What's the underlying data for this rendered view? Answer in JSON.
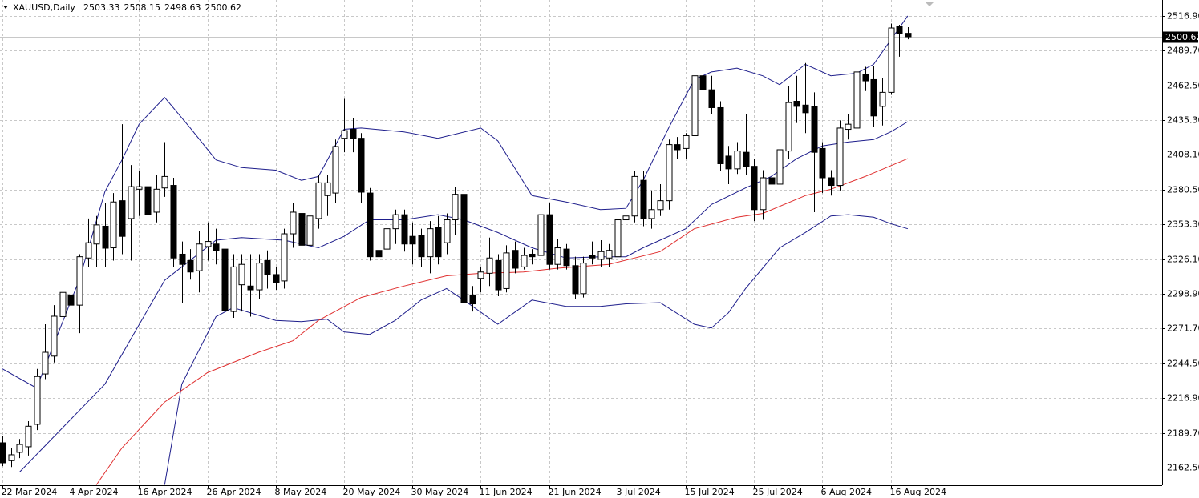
{
  "chart_data": {
    "type": "candlestick",
    "title": "XAUUSD,Daily",
    "header_values": [
      2503.33,
      2508.15,
      2498.63,
      2500.62
    ],
    "categories": [
      "22 Mar 2024",
      null,
      null,
      null,
      null,
      null,
      null,
      null,
      "4 Apr 2024",
      null,
      null,
      null,
      null,
      null,
      null,
      null,
      "16 Apr 2024",
      null,
      null,
      null,
      null,
      null,
      null,
      null,
      "26 Apr 2024",
      null,
      null,
      null,
      null,
      null,
      null,
      null,
      "8 May 2024",
      null,
      null,
      null,
      null,
      null,
      null,
      null,
      "20 May 2024",
      null,
      null,
      null,
      null,
      null,
      null,
      null,
      "30 May 2024",
      null,
      null,
      null,
      null,
      null,
      null,
      null,
      "11 Jun 2024",
      null,
      null,
      null,
      null,
      null,
      null,
      null,
      "21 Jun 2024",
      null,
      null,
      null,
      null,
      null,
      null,
      null,
      "3 Jul 2024",
      null,
      null,
      null,
      null,
      null,
      null,
      null,
      "15 Jul 2024",
      null,
      null,
      null,
      null,
      null,
      null,
      null,
      "25 Jul 2024",
      null,
      null,
      null,
      null,
      null,
      null,
      null,
      "6 Aug 2024",
      null,
      null,
      null,
      null,
      null,
      null,
      null,
      "16 Aug 2024",
      null,
      null
    ],
    "open": [
      2182,
      2168,
      2174.5,
      2178.9,
      2196.5,
      2236,
      2250,
      2281,
      2298,
      2290,
      2327,
      2338,
      2352,
      2335,
      2372,
      2358,
      2381,
      2383,
      2363,
      2382,
      2384,
      2330,
      2325,
      2317,
      2336,
      2338,
      2334,
      2285,
      2306,
      2305,
      2302,
      2325,
      2314,
      2309,
      2346,
      2362,
      2337,
      2358,
      2376,
      2378,
      2421,
      2428,
      2421,
      2378,
      2333,
      2334,
      2350,
      2361,
      2344,
      2345,
      2328,
      2351,
      2339,
      2357,
      2377,
      2298,
      2311,
      2315,
      2325,
      2303,
      2333,
      2320,
      2330,
      2329,
      2361,
      2322,
      2334,
      2321,
      2299,
      2329,
      2326,
      2327,
      2328,
      2357,
      2360,
      2388,
      2358,
      2365,
      2372,
      2416,
      2413,
      2423,
      2470,
      2459,
      2445,
      2407,
      2397,
      2410,
      2399,
      2365,
      2390,
      2385,
      2411,
      2450,
      2447,
      2446,
      2413,
      2390,
      2384,
      2428,
      2429,
      2471,
      2467,
      2446,
      2457,
      2509,
      2503.33
    ],
    "high": [
      2187,
      2177.6,
      2185,
      2199,
      2240,
      2275,
      2290,
      2305,
      2305,
      2330,
      2358,
      2360,
      2370,
      2378,
      2432,
      2400,
      2395,
      2400,
      2392,
      2418,
      2390,
      2340,
      2334,
      2348,
      2355,
      2350,
      2340,
      2330,
      2330,
      2330,
      2330,
      2333,
      2320,
      2350,
      2370,
      2368,
      2368,
      2392,
      2392,
      2420,
      2452,
      2437,
      2425,
      2382,
      2340,
      2360,
      2365,
      2365,
      2355,
      2350,
      2356,
      2360,
      2362,
      2383,
      2387,
      2305,
      2320,
      2343,
      2330,
      2337,
      2340,
      2335,
      2334,
      2368,
      2370,
      2342,
      2338,
      2328,
      2328,
      2340,
      2341,
      2338,
      2362,
      2370,
      2395,
      2395,
      2380,
      2385,
      2420,
      2422,
      2425,
      2475,
      2484,
      2470,
      2450,
      2415,
      2418,
      2440,
      2405,
      2396,
      2395,
      2418,
      2462,
      2470,
      2480,
      2457,
      2418,
      2396,
      2435,
      2440,
      2478,
      2477,
      2478,
      2468,
      2511,
      2510,
      2508.15
    ],
    "low": [
      2163.7,
      2163,
      2170,
      2172,
      2192,
      2232,
      2245,
      2275,
      2268,
      2268,
      2320,
      2320,
      2320,
      2325,
      2330,
      2325,
      2360,
      2355,
      2355,
      2375,
      2320,
      2292,
      2310,
      2300,
      2325,
      2322,
      2285,
      2280,
      2285,
      2281,
      2295,
      2303,
      2302,
      2303,
      2335,
      2330,
      2330,
      2350,
      2360,
      2370,
      2410,
      2410,
      2370,
      2325,
      2322,
      2328,
      2338,
      2332,
      2322,
      2320,
      2315,
      2322,
      2330,
      2345,
      2288,
      2285,
      2300,
      2305,
      2297,
      2300,
      2315,
      2318,
      2322,
      2325,
      2318,
      2318,
      2318,
      2295,
      2296,
      2322,
      2320,
      2320,
      2324,
      2350,
      2355,
      2352,
      2350,
      2360,
      2365,
      2405,
      2405,
      2418,
      2450,
      2440,
      2395,
      2385,
      2393,
      2392,
      2356,
      2357,
      2370,
      2378,
      2405,
      2433,
      2425,
      2363,
      2378,
      2376,
      2380,
      2420,
      2426,
      2458,
      2430,
      2431,
      2455,
      2485,
      2498.63
    ],
    "close": [
      2166.3,
      2172.6,
      2180.7,
      2195,
      2234,
      2253,
      2281.3,
      2300,
      2290,
      2328,
      2339,
      2353,
      2334.7,
      2371,
      2344,
      2383,
      2383,
      2361,
      2381,
      2391,
      2327,
      2322,
      2316,
      2338,
      2340,
      2333,
      2286,
      2320,
      2322,
      2302,
      2323,
      2314,
      2308,
      2346,
      2363,
      2337,
      2360,
      2386,
      2386,
      2414.5,
      2427,
      2421,
      2378.7,
      2328,
      2328,
      2350,
      2361,
      2338,
      2338,
      2328,
      2350,
      2328,
      2357,
      2377,
      2292,
      2291,
      2316,
      2327,
      2302,
      2331,
      2319,
      2329,
      2328,
      2361,
      2322,
      2335,
      2321,
      2299,
      2323,
      2327,
      2332,
      2333,
      2357,
      2360,
      2391,
      2358,
      2365,
      2372,
      2416,
      2412,
      2423,
      2470,
      2459,
      2445,
      2401,
      2397,
      2411,
      2399,
      2365,
      2390,
      2385,
      2412,
      2449,
      2446,
      2441,
      2410,
      2390,
      2384,
      2429,
      2432,
      2473,
      2466,
      2438.5,
      2457,
      2507.5,
      2503,
      2500.62
    ],
    "up_color": "#ffffff",
    "down_color": "#000000",
    "outline_color": "#000000",
    "lines": [
      {
        "color": "#1e1e8c",
        "x": [
          0,
          4,
          9,
          12,
          14,
          16,
          19,
          22,
          25,
          28,
          32,
          35,
          37,
          40,
          42,
          47,
          51,
          56,
          58,
          62,
          66,
          70,
          73,
          75,
          78,
          81,
          83,
          86,
          89,
          91,
          94,
          97,
          100,
          102,
          104,
          106
        ],
        "values": [
          2240,
          2225,
          2310,
          2379,
          2404,
          2432,
          2453,
          2429,
          2404,
          2398,
          2396,
          2388,
          2391,
          2428,
          2429,
          2426,
          2421,
          2429,
          2419,
          2376,
          2371,
          2365,
          2366,
          2388,
          2429,
          2467,
          2473,
          2476,
          2470,
          2463,
          2479,
          2470,
          2472,
          2479,
          2498,
          2517
        ]
      },
      {
        "color": "#1e1e8c",
        "x": [
          2,
          12,
          19,
          25,
          28,
          33,
          37,
          40,
          43,
          47,
          51,
          54,
          58,
          62,
          66,
          70,
          73,
          75,
          80,
          83,
          87,
          90,
          93,
          96,
          99,
          102,
          104,
          106
        ],
        "values": [
          2159,
          2228,
          2309.5,
          2341,
          2343,
          2341,
          2335,
          2344,
          2357,
          2357,
          2361,
          2357,
          2347,
          2335,
          2327,
          2328,
          2328,
          2335,
          2350,
          2369,
          2382,
          2391,
          2405,
          2415,
          2418,
          2420,
          2426,
          2434
        ]
      },
      {
        "color": "#1e1e8c",
        "x": [
          19,
          21,
          25,
          27,
          32,
          35,
          38,
          40,
          43,
          46,
          49,
          52,
          54,
          58,
          62,
          66,
          70,
          73,
          77,
          81,
          83,
          85,
          87,
          91,
          94,
          97,
          99,
          102,
          104,
          106
        ],
        "values": [
          2149,
          2228,
          2281,
          2288,
          2278,
          2277,
          2279,
          2269,
          2267,
          2278,
          2294,
          2303,
          2294,
          2275,
          2294,
          2289,
          2289,
          2291,
          2292,
          2275,
          2272,
          2284,
          2303,
          2335,
          2347,
          2360,
          2361,
          2359,
          2354,
          2350
        ]
      },
      {
        "color": "#e03030",
        "x": [
          11,
          14,
          19,
          24,
          30,
          34,
          37,
          42,
          47,
          52,
          56,
          61,
          65,
          71,
          77,
          81,
          86,
          89,
          94,
          97,
          101,
          106
        ],
        "values": [
          2149,
          2178,
          2214,
          2237,
          2253,
          2262,
          2278,
          2296,
          2305,
          2313,
          2315,
          2316,
          2319,
          2322,
          2332,
          2350,
          2359,
          2362,
          2376,
          2381,
          2391,
          2405
        ]
      }
    ],
    "ylim": [
      2148.7,
      2529.5
    ],
    "yticks": [
      {
        "value": 2516.9,
        "label": "2516.90"
      },
      {
        "value": 2489.7,
        "label": "2489.70"
      },
      {
        "value": 2462.5,
        "label": "2462.50"
      },
      {
        "value": 2435.3,
        "label": "2435.30"
      },
      {
        "value": 2408.1,
        "label": "2408.10"
      },
      {
        "value": 2380.5,
        "label": "2380.50"
      },
      {
        "value": 2353.3,
        "label": "2353.30"
      },
      {
        "value": 2326.1,
        "label": "2326.10"
      },
      {
        "value": 2298.9,
        "label": "2298.90"
      },
      {
        "value": 2271.7,
        "label": "2271.70"
      },
      {
        "value": 2244.5,
        "label": "2244.50"
      },
      {
        "value": 2216.9,
        "label": "2216.90"
      },
      {
        "value": 2189.7,
        "label": "2189.70"
      },
      {
        "value": 2162.5,
        "label": "2162.50"
      }
    ],
    "grid": true
  }
}
